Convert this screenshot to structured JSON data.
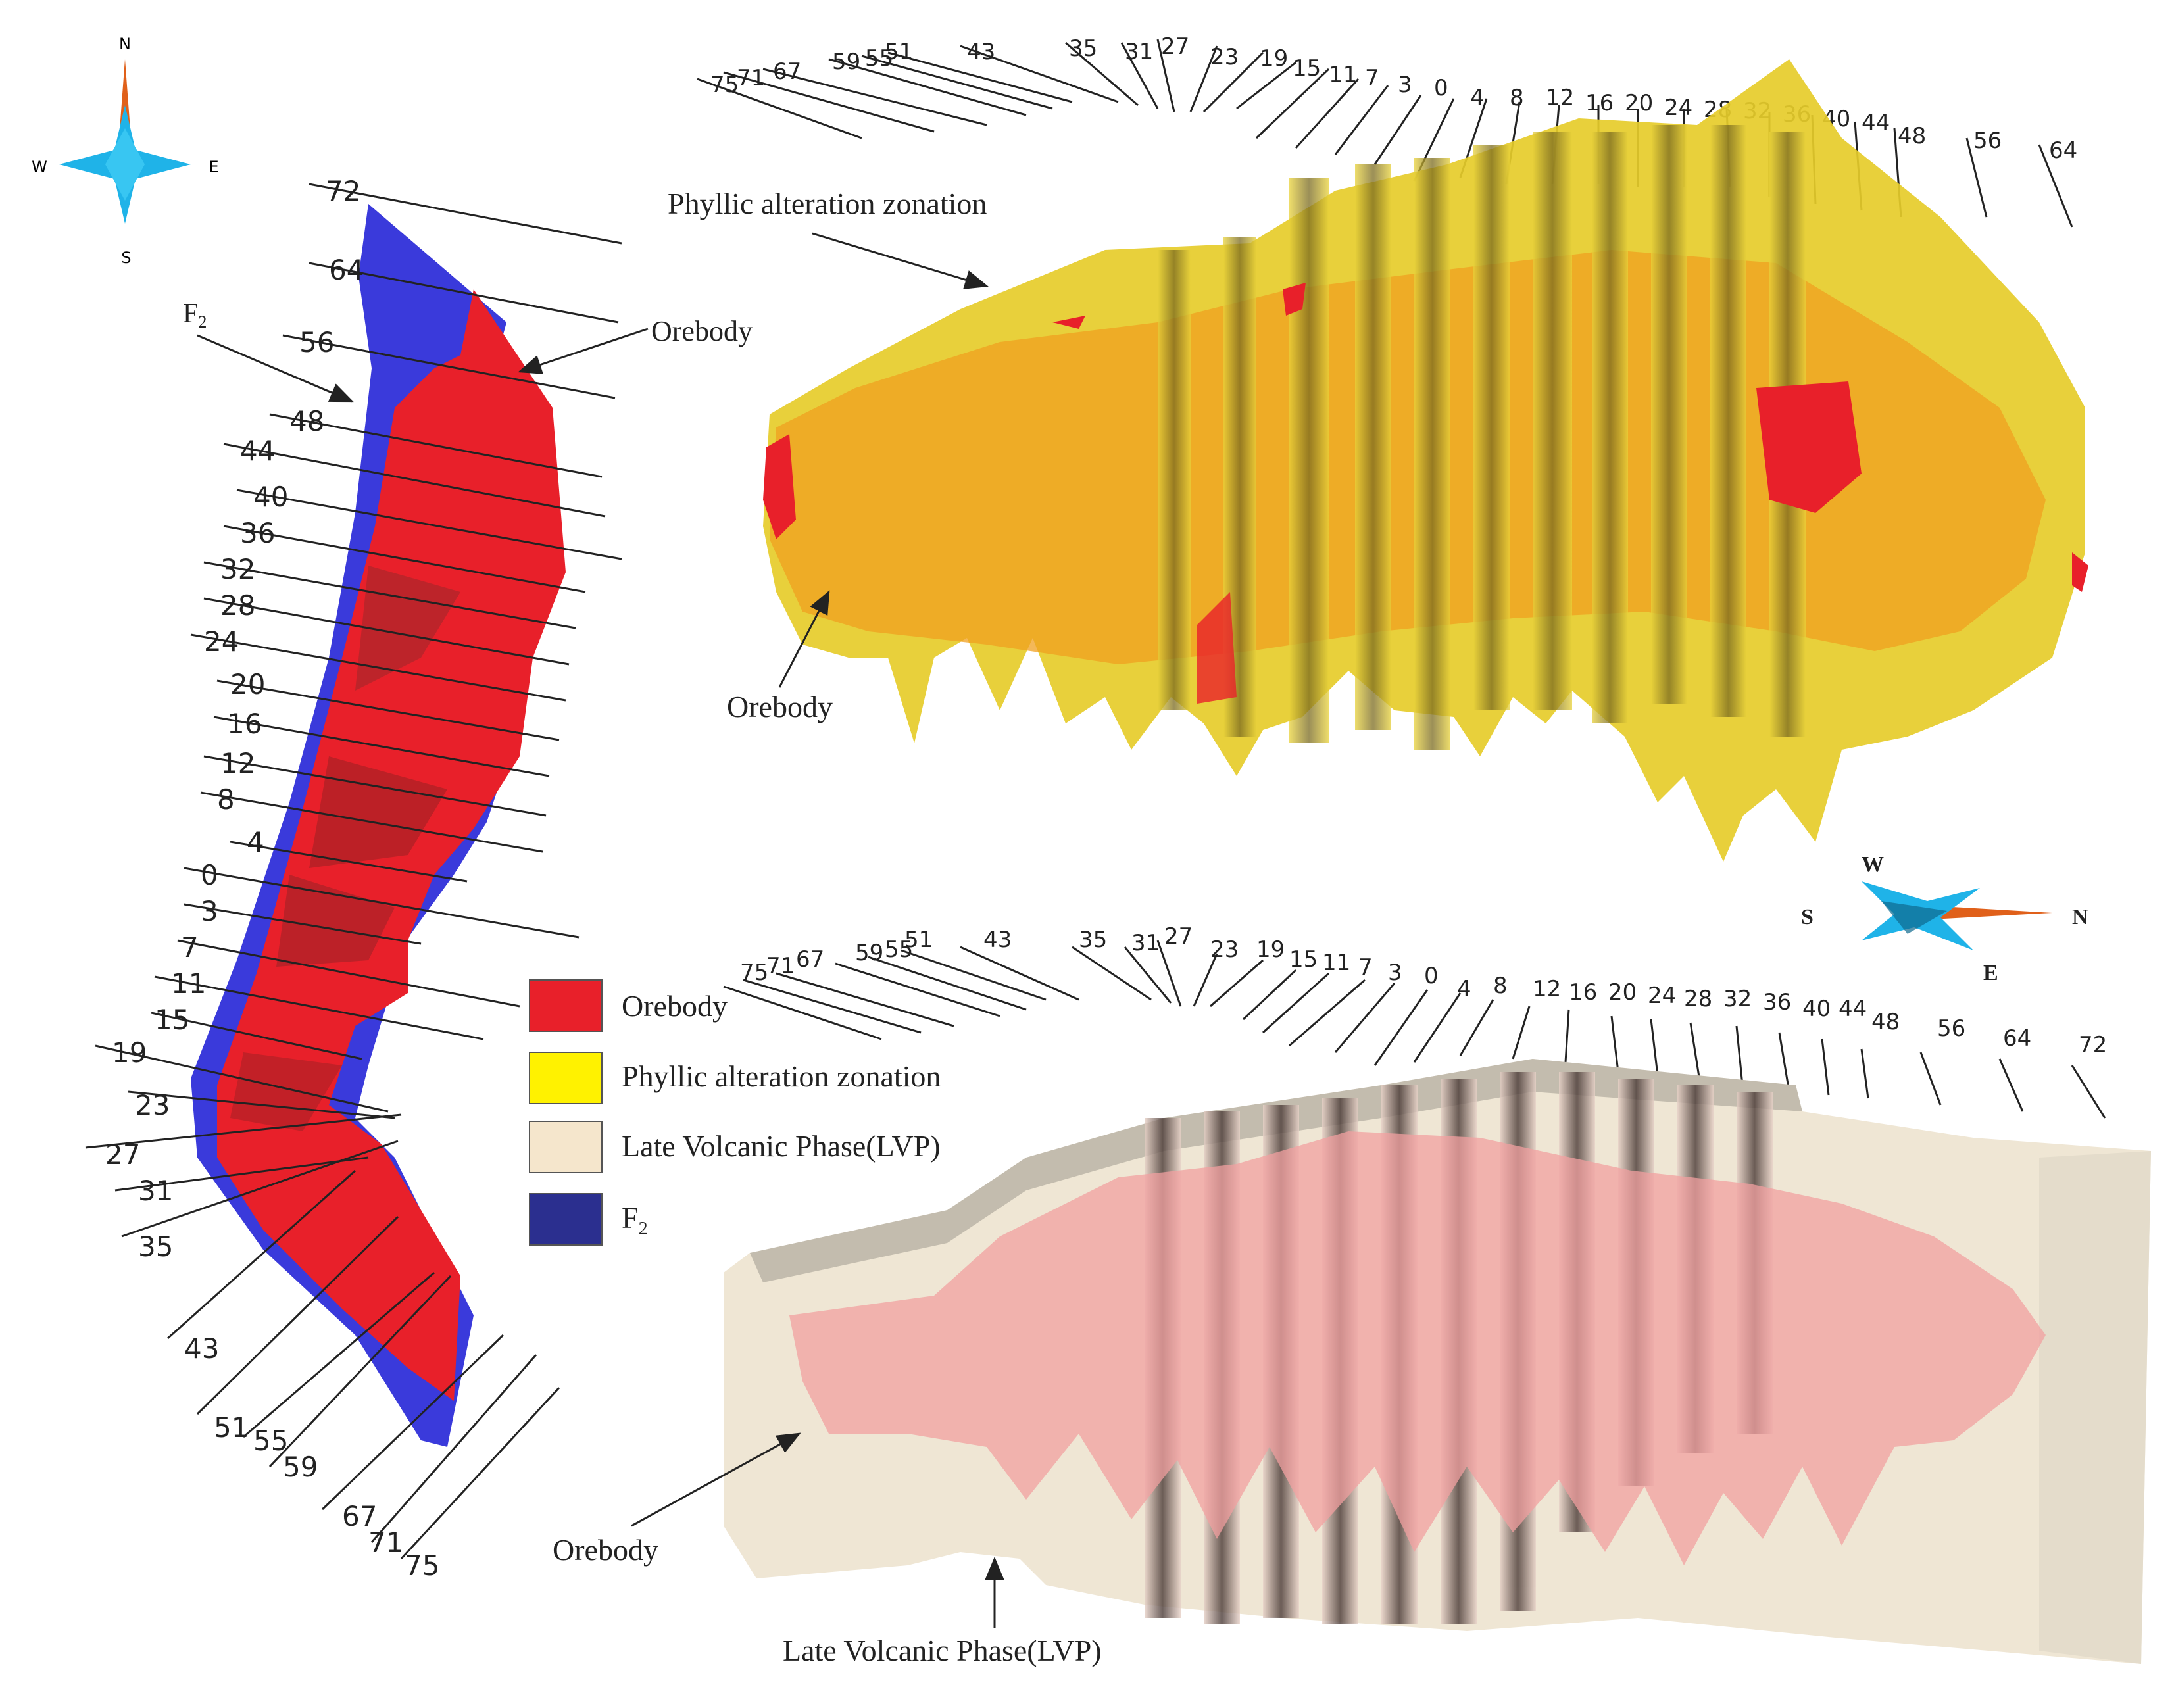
{
  "compass_top": {
    "n": "N",
    "s": "S",
    "w": "W",
    "e": "E"
  },
  "compass_mid": {
    "w": "W",
    "s": "S",
    "n": "N",
    "e": "E"
  },
  "left_panel": {
    "f2_label": "F",
    "f2_sub": "2",
    "orebody_label": "Orebody",
    "section_labels": [
      "72",
      "64",
      "56",
      "48",
      "44",
      "40",
      "36",
      "32",
      "28",
      "24",
      "20",
      "16",
      "12",
      "8",
      "4",
      "0",
      "3",
      "7",
      "11",
      "15",
      "19",
      "23",
      "27",
      "31",
      "35",
      "43",
      "51",
      "55",
      "59",
      "67",
      "71",
      "75"
    ]
  },
  "top_panel": {
    "phyllic_label": "Phyllic alteration zonation",
    "orebody_label": "Orebody",
    "section_labels": [
      "75",
      "71",
      "67",
      "59",
      "55",
      "51",
      "43",
      "35",
      "31",
      "27",
      "23",
      "19",
      "15",
      "11",
      "7",
      "3",
      "0",
      "4",
      "8",
      "12",
      "16",
      "20",
      "24",
      "28",
      "32",
      "36",
      "40",
      "44",
      "48",
      "56",
      "64"
    ]
  },
  "bottom_panel": {
    "orebody_label": "Orebody",
    "lvp_label": "Late Volcanic Phase(LVP)",
    "section_labels": [
      "75",
      "71",
      "67",
      "59",
      "55",
      "51",
      "43",
      "35",
      "31",
      "27",
      "23",
      "19",
      "15",
      "11",
      "7",
      "3",
      "0",
      "4",
      "8",
      "12",
      "16",
      "20",
      "24",
      "28",
      "32",
      "36",
      "40",
      "44",
      "48",
      "56",
      "64",
      "72"
    ]
  },
  "legend": {
    "items": [
      {
        "label": "Orebody",
        "color": "#e8202a"
      },
      {
        "label": "Phyllic alteration zonation",
        "color": "#fff200"
      },
      {
        "label": "Late Volcanic Phase(LVP)",
        "color": "#f5e6cc"
      },
      {
        "label": "F",
        "sub": "2",
        "color": "#2b2f8f"
      }
    ]
  },
  "colors": {
    "orebody": "#e8202a",
    "phyllic": "#e6cc2a",
    "lvp": "#efe6d4",
    "f2": "#3a3adb",
    "compass_blue": "#1fb3e8",
    "compass_orange": "#e0601a"
  }
}
